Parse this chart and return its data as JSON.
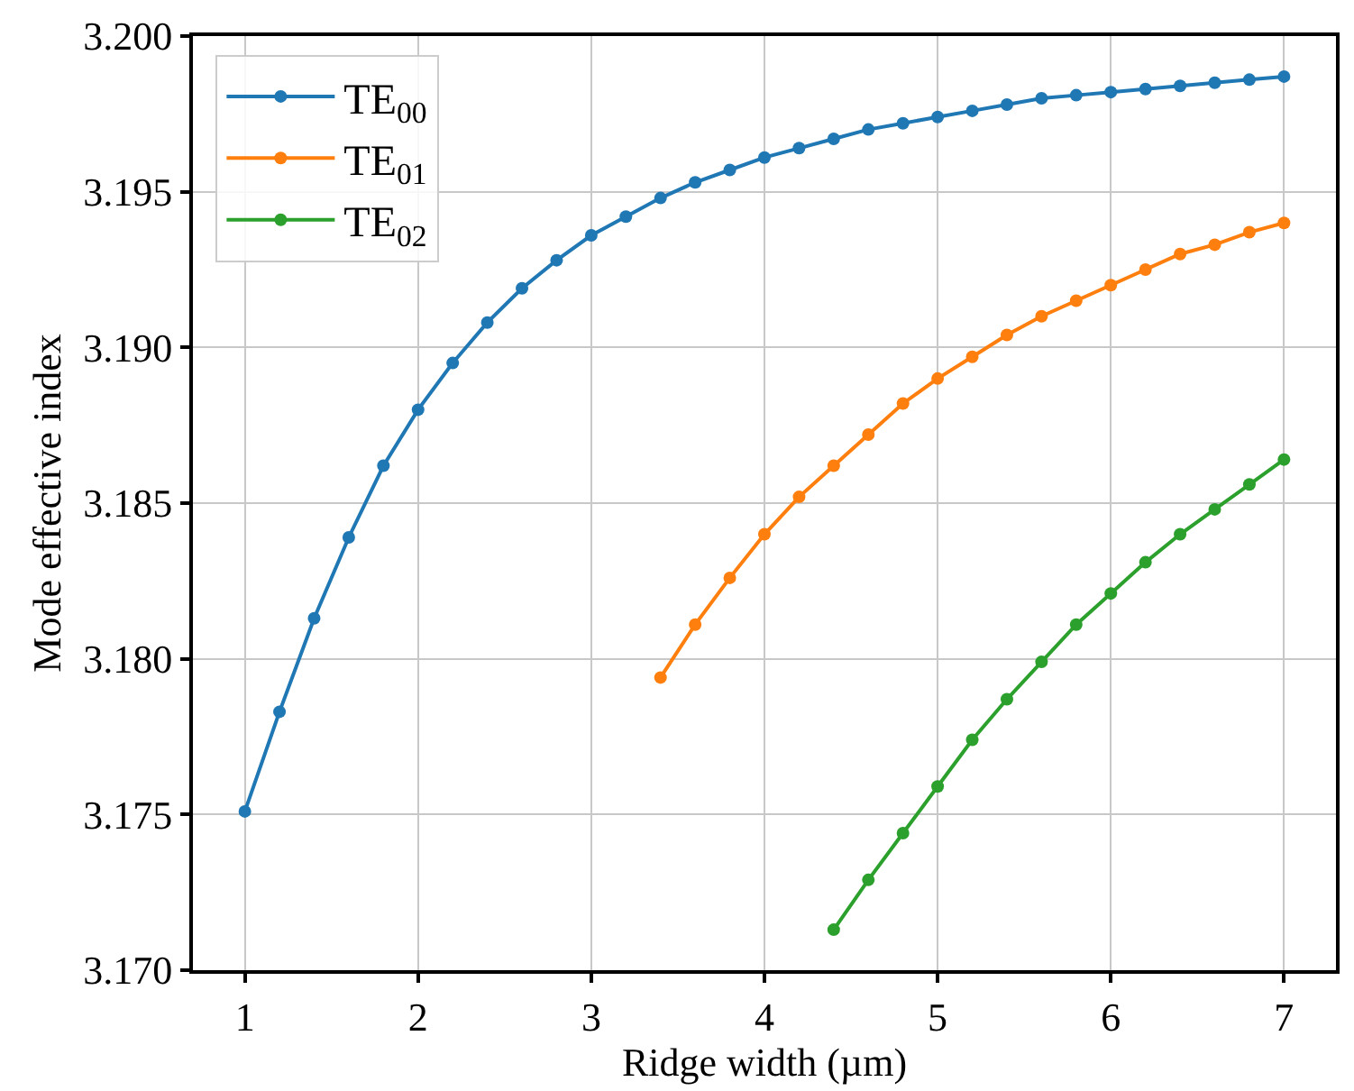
{
  "chart_data": {
    "type": "line",
    "xlabel": "Ridge width (µm)",
    "ylabel": "Mode effective index",
    "xlim": [
      0.7,
      7.3
    ],
    "xticks": [
      1,
      2,
      3,
      4,
      5,
      6,
      7
    ],
    "ylim": [
      3.17,
      3.2
    ],
    "yticks": [
      {
        "value": 3.17,
        "label": "3.170"
      },
      {
        "value": 3.175,
        "label": "3.175"
      },
      {
        "value": 3.18,
        "label": "3.180"
      },
      {
        "value": 3.185,
        "label": "3.185"
      },
      {
        "value": 3.19,
        "label": "3.190"
      },
      {
        "value": 3.195,
        "label": "3.195"
      },
      {
        "value": 3.2,
        "label": "3.200"
      }
    ],
    "grid": true,
    "legend": "top left",
    "marker": "circle",
    "line_style": "solid",
    "series": [
      {
        "name": "TE$_{00}$",
        "color": "#1f77b4",
        "x": [
          1.0,
          1.2,
          1.4,
          1.6,
          1.8,
          2.0,
          2.2,
          2.4,
          2.6,
          2.8,
          3.0,
          3.2,
          3.4,
          3.6,
          3.8,
          4.0,
          4.2,
          4.4,
          4.6,
          4.8,
          5.0,
          5.2,
          5.4,
          5.6,
          5.8,
          6.0,
          6.2,
          6.4,
          6.6,
          6.8,
          7.0
        ],
        "values": [
          3.1751,
          3.1783,
          3.1813,
          3.1839,
          3.1862,
          3.188,
          3.1895,
          3.1908,
          3.1919,
          3.1928,
          3.1936,
          3.1942,
          3.1948,
          3.1953,
          3.1957,
          3.1961,
          3.1964,
          3.1967,
          3.197,
          3.1972,
          3.1974,
          3.1976,
          3.1978,
          3.198,
          3.1981,
          3.1982,
          3.1983,
          3.1984,
          3.1985,
          3.1986,
          3.1987
        ]
      },
      {
        "name": "TE$_{01}$",
        "color": "#ff7f0e",
        "x": [
          3.4,
          3.6,
          3.8,
          4.0,
          4.2,
          4.4,
          4.6,
          4.8,
          5.0,
          5.2,
          5.4,
          5.6,
          5.8,
          6.0,
          6.2,
          6.4,
          6.6,
          6.8,
          7.0
        ],
        "values": [
          3.1794,
          3.1811,
          3.1826,
          3.184,
          3.1852,
          3.1862,
          3.1872,
          3.1882,
          3.189,
          3.1897,
          3.1904,
          3.191,
          3.1915,
          3.192,
          3.1925,
          3.193,
          3.1933,
          3.1937,
          3.194
        ]
      },
      {
        "name": "TE$_{02}$",
        "color": "#2ca02c",
        "x": [
          4.4,
          4.6,
          4.8,
          5.0,
          5.2,
          5.4,
          5.6,
          5.8,
          6.0,
          6.2,
          6.4,
          6.6,
          6.8,
          7.0
        ],
        "values": [
          3.1713,
          3.1729,
          3.1744,
          3.1759,
          3.1774,
          3.1787,
          3.1799,
          3.1811,
          3.1821,
          3.1831,
          3.184,
          3.1848,
          3.1856,
          3.1864
        ]
      }
    ]
  }
}
